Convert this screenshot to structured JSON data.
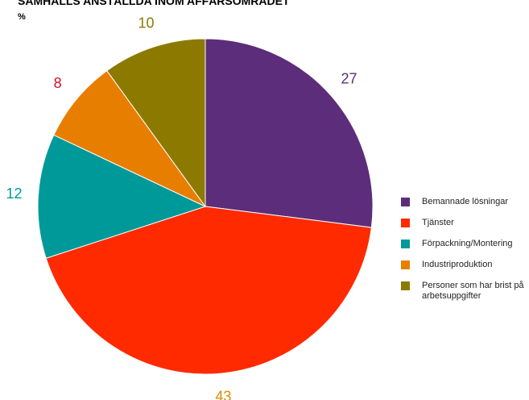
{
  "chart_data": {
    "type": "pie",
    "title": "SAMHALLS ANSTÄLLDA INOM AFFÄRSOMRÅDET",
    "subtitle": "%",
    "categories": [
      "Bemannade lösningar",
      "Tjänster",
      "Förpackning/Montering",
      "Industriproduktion",
      "Personer som har brist på arbetsuppgifter"
    ],
    "values": [
      27,
      43,
      12,
      8,
      10
    ],
    "colors": [
      "#5c2d7a",
      "#ff2a00",
      "#009999",
      "#e87e00",
      "#8c7a00"
    ],
    "label_colors": [
      "#5c2d7a",
      "#e08a00",
      "#009999",
      "#d0102e",
      "#8c7a00"
    ],
    "legend": "right"
  }
}
